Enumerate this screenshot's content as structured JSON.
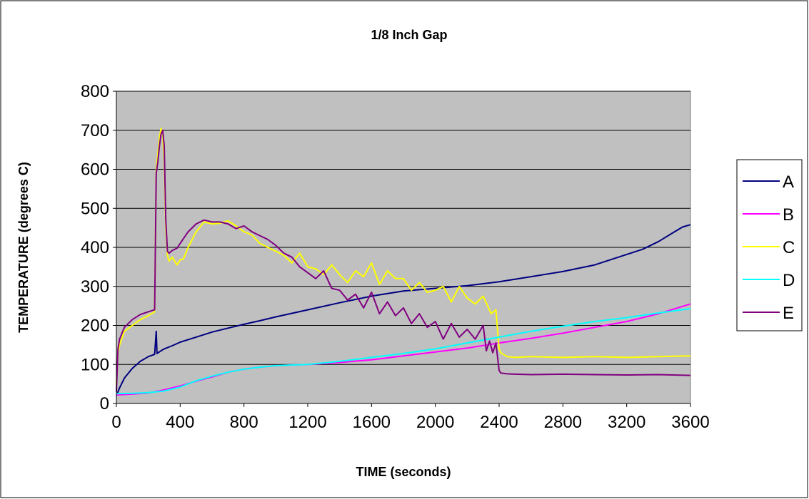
{
  "chart_data": {
    "type": "line",
    "title": "1/8 Inch Gap",
    "xlabel": "TIME (seconds)",
    "ylabel": "TEMPERATURE (degrees C)",
    "xlim": [
      0,
      3600
    ],
    "ylim": [
      0,
      800
    ],
    "xticks": [
      0,
      400,
      800,
      1200,
      1600,
      2000,
      2400,
      2800,
      3200,
      3600
    ],
    "yticks": [
      0,
      100,
      200,
      300,
      400,
      500,
      600,
      700,
      800
    ],
    "grid": "horizontal",
    "plot_background": "#c0c0c0",
    "legend_position": "right",
    "series": [
      {
        "name": "A",
        "color": "#000080",
        "x": [
          0,
          20,
          50,
          100,
          150,
          200,
          240,
          250,
          255,
          262,
          280,
          300,
          350,
          400,
          500,
          600,
          700,
          800,
          900,
          1000,
          1200,
          1400,
          1600,
          1800,
          2000,
          2200,
          2400,
          2600,
          2800,
          3000,
          3200,
          3300,
          3400,
          3500,
          3550,
          3600
        ],
        "y": [
          20,
          40,
          65,
          90,
          108,
          120,
          126,
          185,
          128,
          130,
          135,
          140,
          148,
          157,
          170,
          183,
          193,
          203,
          212,
          222,
          240,
          258,
          275,
          288,
          295,
          302,
          312,
          325,
          338,
          355,
          382,
          395,
          415,
          440,
          452,
          458
        ]
      },
      {
        "name": "B",
        "color": "#ff00ff",
        "x": [
          0,
          100,
          200,
          300,
          400,
          500,
          600,
          700,
          800,
          900,
          1000,
          1200,
          1400,
          1600,
          1800,
          2000,
          2200,
          2400,
          2600,
          2800,
          3000,
          3200,
          3400,
          3600
        ],
        "y": [
          22,
          24,
          27,
          35,
          45,
          57,
          68,
          80,
          88,
          93,
          97,
          100,
          105,
          112,
          122,
          132,
          142,
          155,
          167,
          180,
          195,
          210,
          230,
          255
        ]
      },
      {
        "name": "C",
        "color": "#ffff00",
        "x": [
          0,
          10,
          20,
          50,
          100,
          150,
          200,
          240,
          250,
          260,
          270,
          280,
          290,
          300,
          310,
          320,
          330,
          350,
          380,
          400,
          420,
          450,
          500,
          550,
          600,
          650,
          700,
          750,
          800,
          850,
          900,
          950,
          1000,
          1050,
          1100,
          1150,
          1200,
          1250,
          1300,
          1350,
          1400,
          1450,
          1500,
          1550,
          1600,
          1650,
          1700,
          1750,
          1800,
          1850,
          1900,
          1950,
          2000,
          2050,
          2100,
          2150,
          2200,
          2250,
          2300,
          2350,
          2380,
          2400,
          2410,
          2450,
          2500,
          2600,
          2800,
          3000,
          3200,
          3400,
          3600
        ],
        "y": [
          50,
          130,
          150,
          185,
          200,
          215,
          225,
          235,
          600,
          640,
          680,
          705,
          690,
          620,
          450,
          380,
          365,
          375,
          355,
          368,
          370,
          400,
          440,
          465,
          460,
          462,
          468,
          455,
          440,
          432,
          410,
          400,
          390,
          380,
          360,
          385,
          350,
          345,
          330,
          355,
          330,
          310,
          340,
          325,
          360,
          305,
          340,
          320,
          320,
          290,
          310,
          285,
          290,
          300,
          260,
          300,
          270,
          255,
          275,
          230,
          240,
          140,
          130,
          120,
          118,
          120,
          118,
          120,
          118,
          120,
          122
        ]
      },
      {
        "name": "D",
        "color": "#00ffff",
        "x": [
          0,
          100,
          200,
          300,
          400,
          500,
          600,
          700,
          800,
          900,
          1000,
          1200,
          1400,
          1600,
          1800,
          2000,
          2200,
          2400,
          2600,
          2800,
          3000,
          3200,
          3400,
          3600
        ],
        "y": [
          25,
          26,
          28,
          32,
          42,
          58,
          70,
          80,
          88,
          93,
          97,
          100,
          108,
          118,
          128,
          140,
          155,
          170,
          185,
          198,
          210,
          220,
          232,
          243
        ]
      },
      {
        "name": "E",
        "color": "#800080",
        "x": [
          0,
          10,
          20,
          50,
          100,
          150,
          200,
          240,
          250,
          260,
          270,
          280,
          290,
          300,
          310,
          320,
          330,
          350,
          380,
          400,
          450,
          500,
          550,
          600,
          650,
          700,
          750,
          800,
          850,
          900,
          950,
          1000,
          1050,
          1100,
          1150,
          1200,
          1250,
          1300,
          1350,
          1400,
          1450,
          1500,
          1550,
          1600,
          1650,
          1700,
          1750,
          1800,
          1850,
          1900,
          1950,
          2000,
          2050,
          2100,
          2150,
          2200,
          2250,
          2300,
          2320,
          2340,
          2360,
          2380,
          2400,
          2410,
          2450,
          2500,
          2600,
          2800,
          3000,
          3200,
          3400,
          3600
        ],
        "y": [
          30,
          140,
          165,
          195,
          215,
          228,
          235,
          240,
          590,
          620,
          660,
          690,
          700,
          660,
          470,
          390,
          385,
          392,
          398,
          410,
          440,
          460,
          470,
          465,
          465,
          460,
          448,
          455,
          440,
          430,
          420,
          405,
          385,
          375,
          350,
          335,
          320,
          340,
          295,
          290,
          265,
          280,
          245,
          285,
          230,
          260,
          225,
          245,
          205,
          230,
          195,
          210,
          165,
          205,
          170,
          190,
          165,
          200,
          135,
          160,
          130,
          155,
          85,
          78,
          76,
          75,
          74,
          75,
          74,
          73,
          74,
          72
        ]
      }
    ]
  }
}
